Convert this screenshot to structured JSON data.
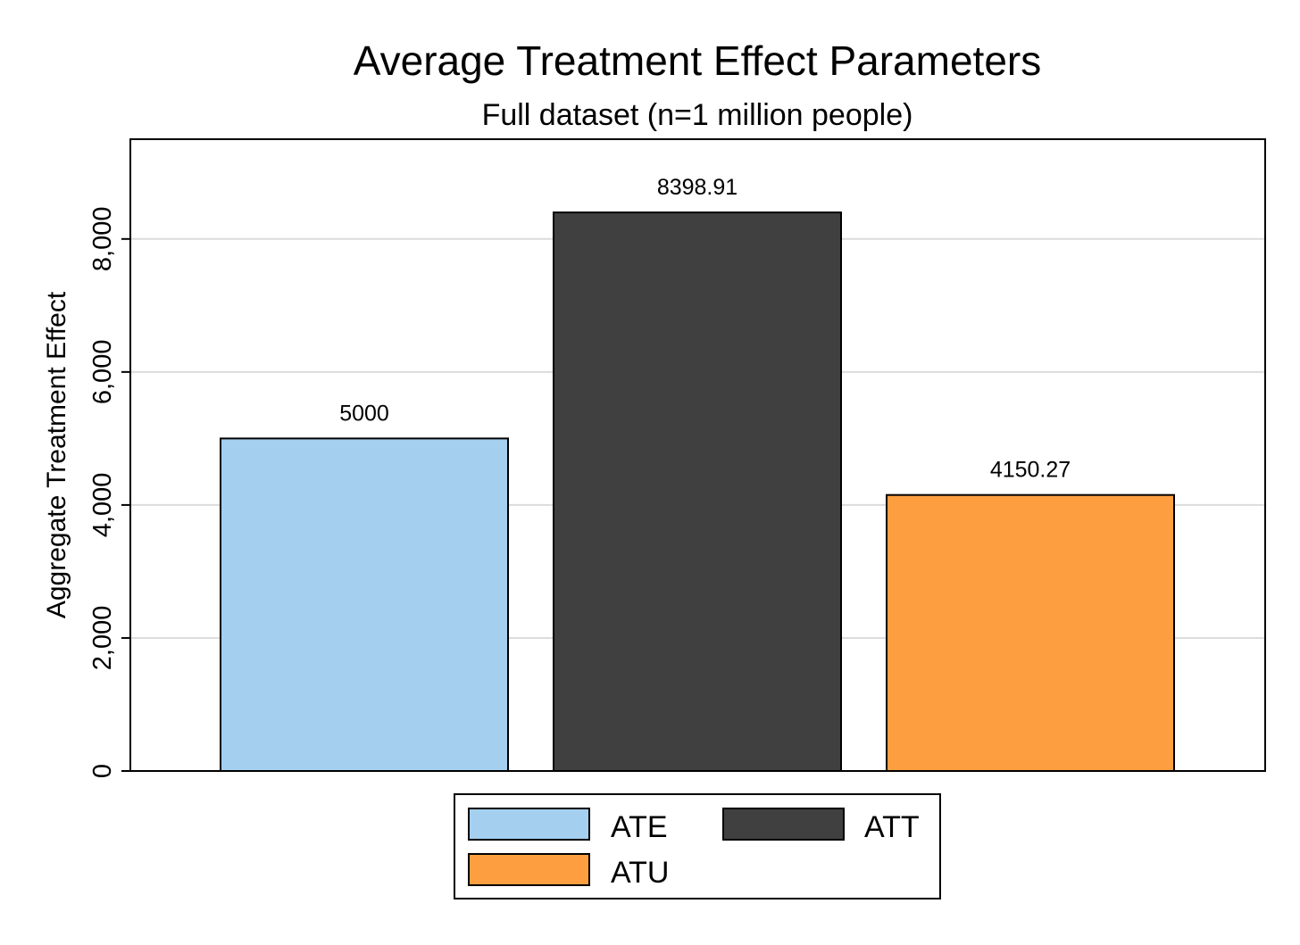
{
  "chart_data": {
    "type": "bar",
    "title": "Average Treatment Effect Parameters",
    "subtitle": "Full dataset (n=1 million people)",
    "xlabel": "",
    "ylabel": "Aggregate Treatment Effect",
    "ylim": [
      0,
      9500
    ],
    "yticks": [
      0,
      2000,
      4000,
      6000,
      8000
    ],
    "ytick_labels": [
      "0",
      "2,000",
      "4,000",
      "6,000",
      "8,000"
    ],
    "grid": true,
    "legend_position": "bottom",
    "categories": [
      "ATE",
      "ATT",
      "ATU"
    ],
    "values": [
      5000,
      8398.91,
      4150.27
    ],
    "value_labels": [
      "5000",
      "8398.91",
      "4150.27"
    ],
    "colors": [
      "#a4cfef",
      "#404040",
      "#fd9f40"
    ]
  }
}
